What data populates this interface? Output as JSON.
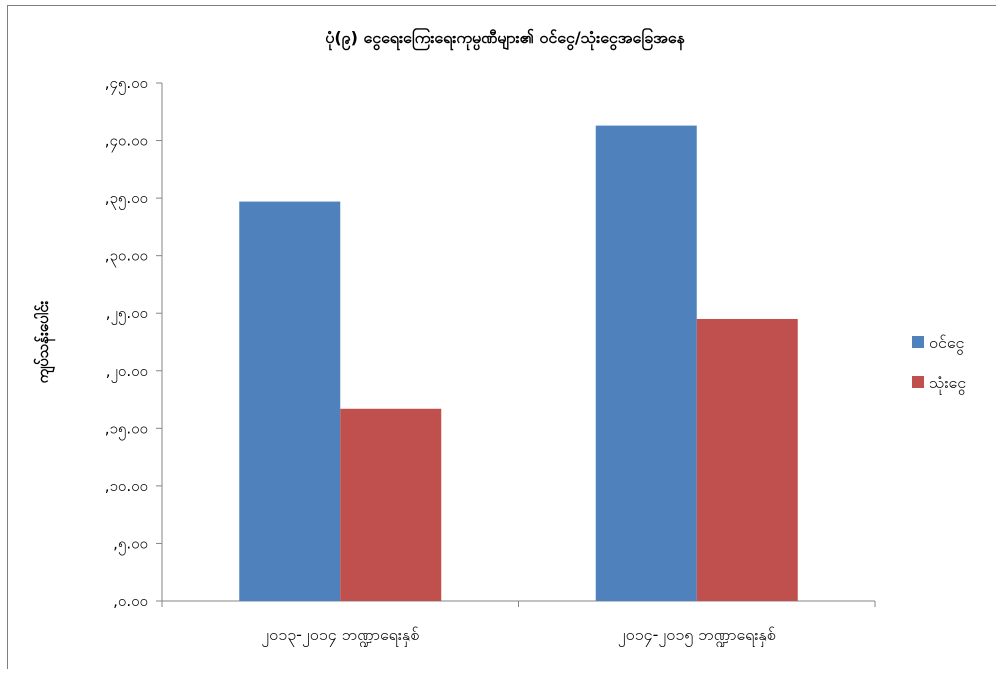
{
  "chart_data": {
    "type": "bar",
    "title": "ပုံ(၉) ငွေရေးကြေးရေးကုမ္ပဏီများ၏ ဝင်ငွေ/သုံးငွေအခြေအနေ",
    "xlabel": "",
    "ylabel": "ကျပ်သန်းပေါင်း",
    "categories": [
      "၂၀၁၃-၂၀၁၄ ဘဏ္ဍာရေးနှစ်",
      "၂၀၁၄-၂၀၁၅ ဘဏ္ဍာရေးနှစ်"
    ],
    "series": [
      {
        "name": "ဝင်ငွေ",
        "values": [
          34700,
          41300
        ],
        "color": "#4f81bd"
      },
      {
        "name": "သုံးငွေ",
        "values": [
          16700,
          24500
        ],
        "color": "#c0504d"
      }
    ],
    "ylim": [
      0,
      45000
    ],
    "yticks": [
      0,
      5000,
      10000,
      15000,
      20000,
      25000,
      30000,
      35000,
      40000,
      45000
    ],
    "ytick_labels": [
      ",၀.၀၀",
      ",၅.၀၀",
      ",၁၀.၀၀",
      ",၁၅.၀၀",
      ",၂၀.၀၀",
      ",၂၅.၀၀",
      ",၃၀.၀၀",
      ",၃၅.၀၀",
      ",၄၀.၀၀",
      ",၄၅.၀၀"
    ],
    "legend_position": "right",
    "grid": false
  }
}
